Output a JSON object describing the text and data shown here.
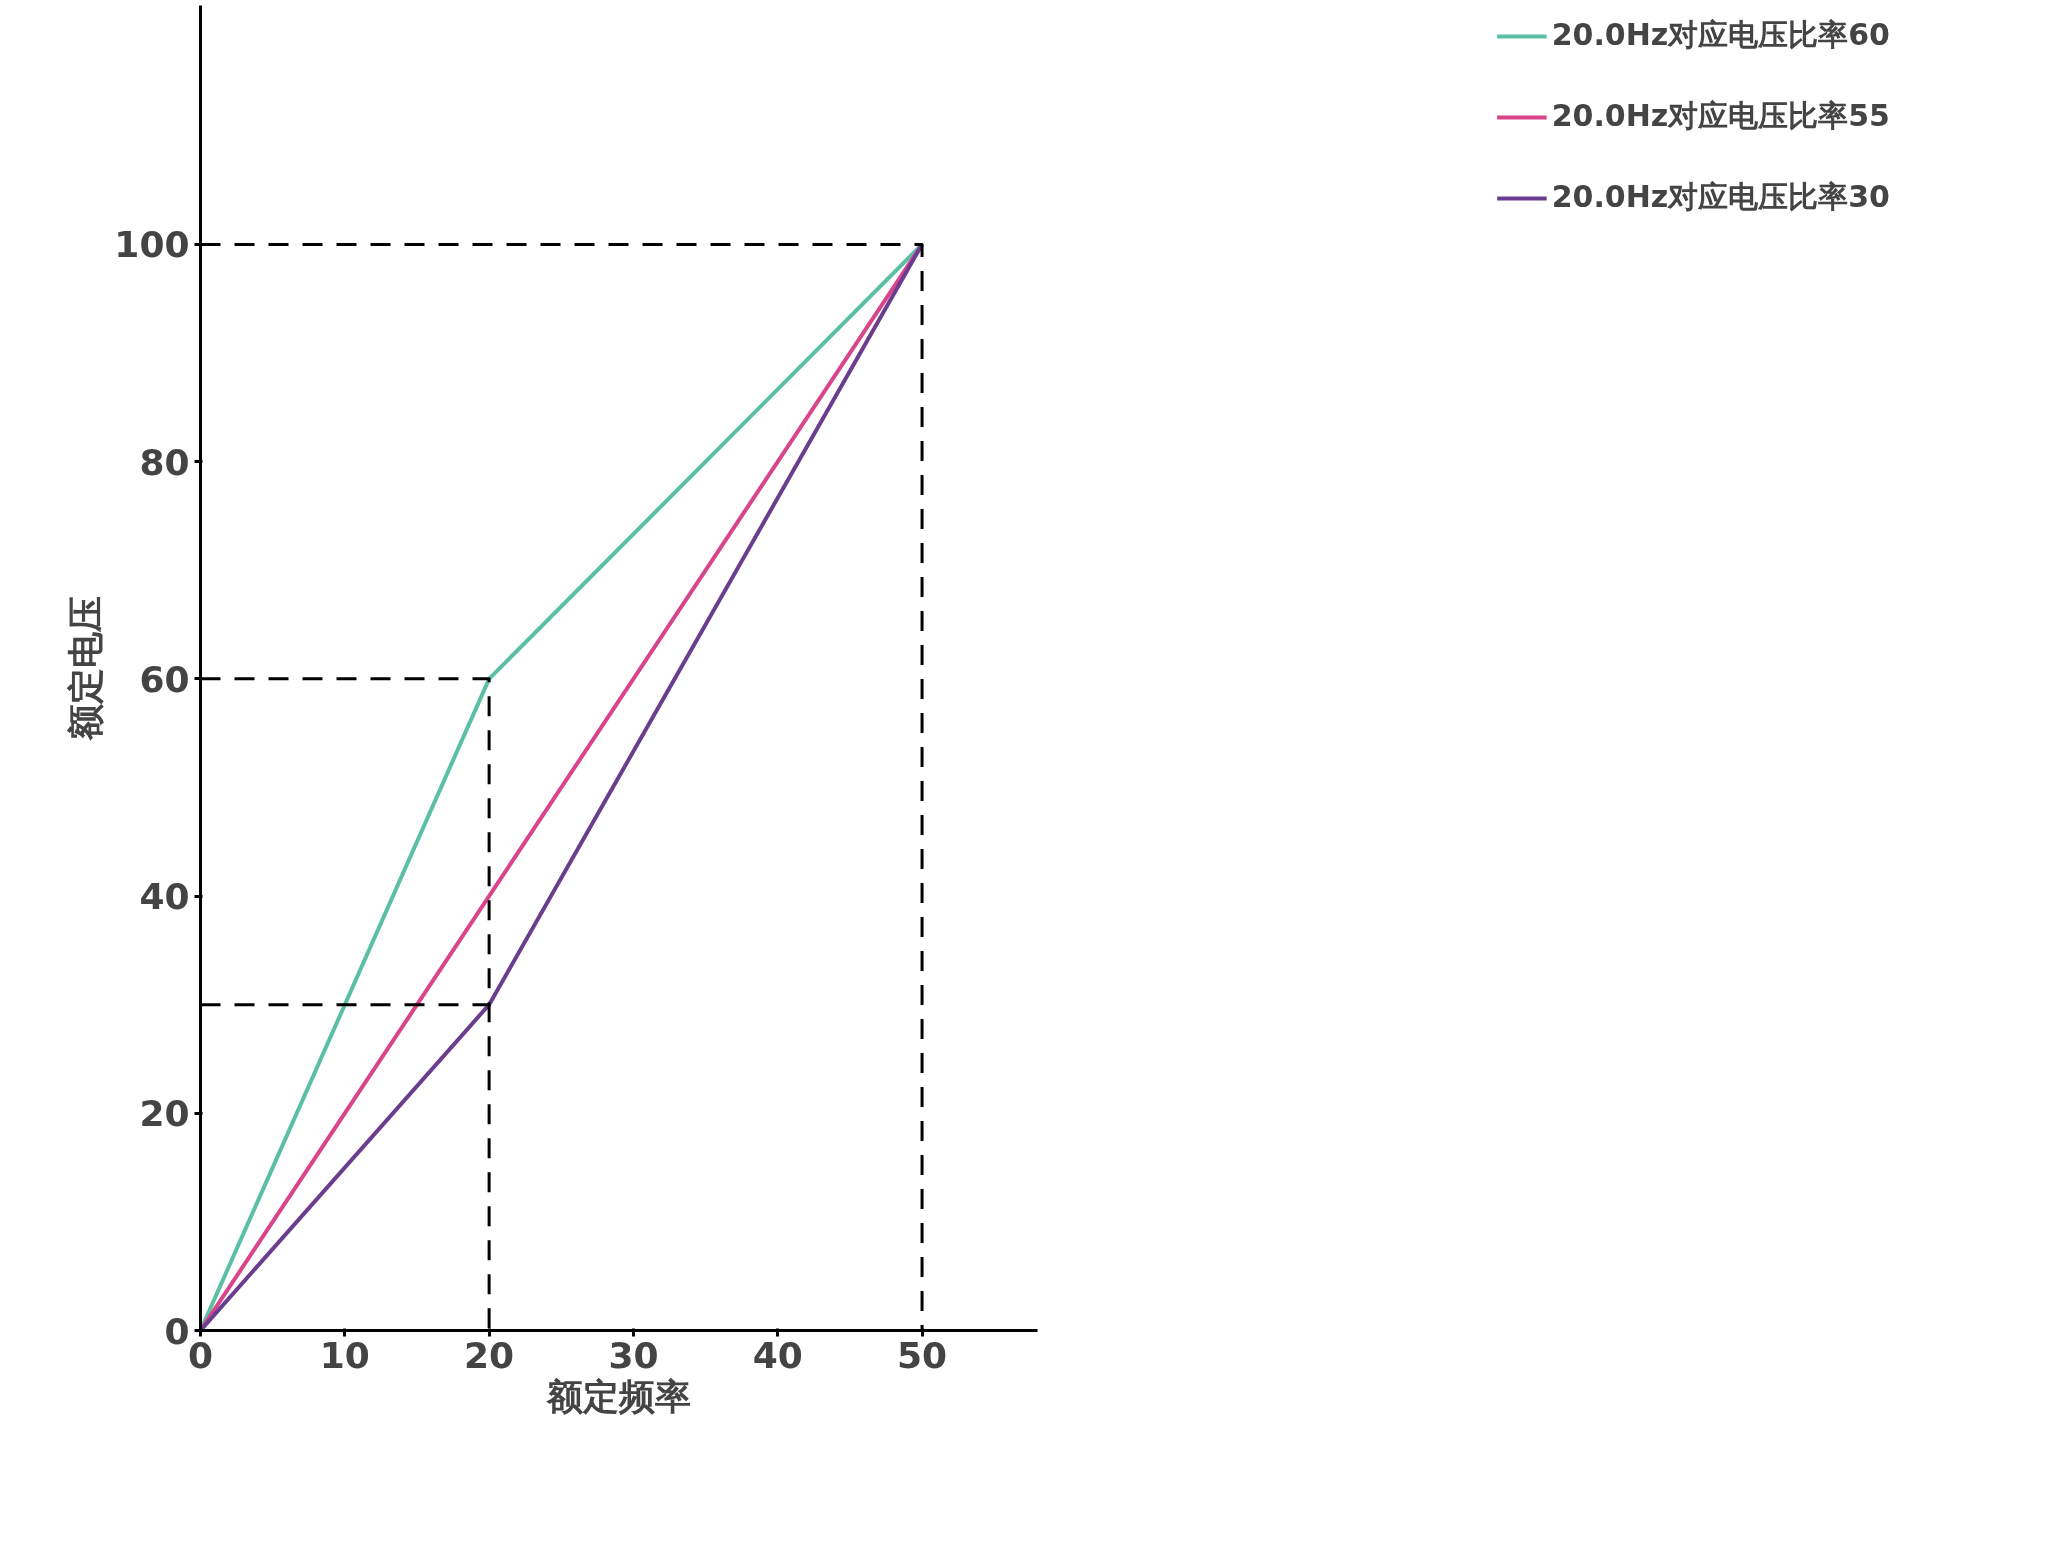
{
  "chart_data": {
    "type": "line",
    "xlabel": "额定频率",
    "ylabel": "额定电压",
    "xlim": [
      0,
      58
    ],
    "ylim": [
      0,
      122
    ],
    "xticks": [
      0,
      10,
      20,
      30,
      40,
      50
    ],
    "yticks": [
      0,
      20,
      40,
      60,
      80,
      100
    ],
    "grid": false,
    "legend": "right",
    "marker": "none",
    "series": [
      {
        "name": "20.0Hz对应电压比率60",
        "color": "#5bbfa6",
        "x": [
          0,
          20,
          50
        ],
        "values": [
          0,
          60,
          100
        ]
      },
      {
        "name": "20.0Hz对应电压比率55",
        "color": "#d8458a",
        "x": [
          0,
          20,
          50
        ],
        "values": [
          0,
          40,
          100
        ]
      },
      {
        "name": "20.0Hz对应电压比率30",
        "color": "#6a3d8f",
        "x": [
          0,
          20,
          50
        ],
        "values": [
          0,
          30,
          100
        ]
      },
      {
        "color": "#000000",
        "line_style": "dashed",
        "x": [
          0,
          50,
          50
        ],
        "values": [
          100,
          100,
          0
        ]
      },
      {
        "color": "#000000",
        "line_style": "dashed",
        "x": [
          0,
          20,
          20
        ],
        "values": [
          60,
          60,
          0
        ]
      },
      {
        "color": "#000000",
        "line_style": "dashed",
        "x": [
          0,
          20
        ],
        "values": [
          30,
          30
        ]
      }
    ]
  }
}
